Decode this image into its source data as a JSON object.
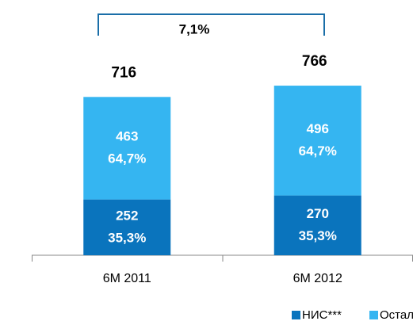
{
  "chart_data": {
    "type": "stacked_bar",
    "categories": [
      "6M 2011",
      "6M 2012"
    ],
    "series": [
      {
        "name": "НИС***",
        "color": "#0a74bd",
        "values": [
          252,
          270
        ],
        "shares": [
          {
            "value": 35.3,
            "label": "35,3%"
          },
          {
            "value": 35.3,
            "label": "35,3%"
          }
        ]
      },
      {
        "name": "Остали**",
        "color": "#35b5f1",
        "values": [
          463,
          496
        ],
        "shares": [
          {
            "value": 64.7,
            "label": "64,7%"
          },
          {
            "value": 64.7,
            "label": "64,7%"
          }
        ]
      }
    ],
    "totals": [
      716,
      766
    ],
    "growth": {
      "value": 7.1,
      "label": "7,1%"
    }
  }
}
